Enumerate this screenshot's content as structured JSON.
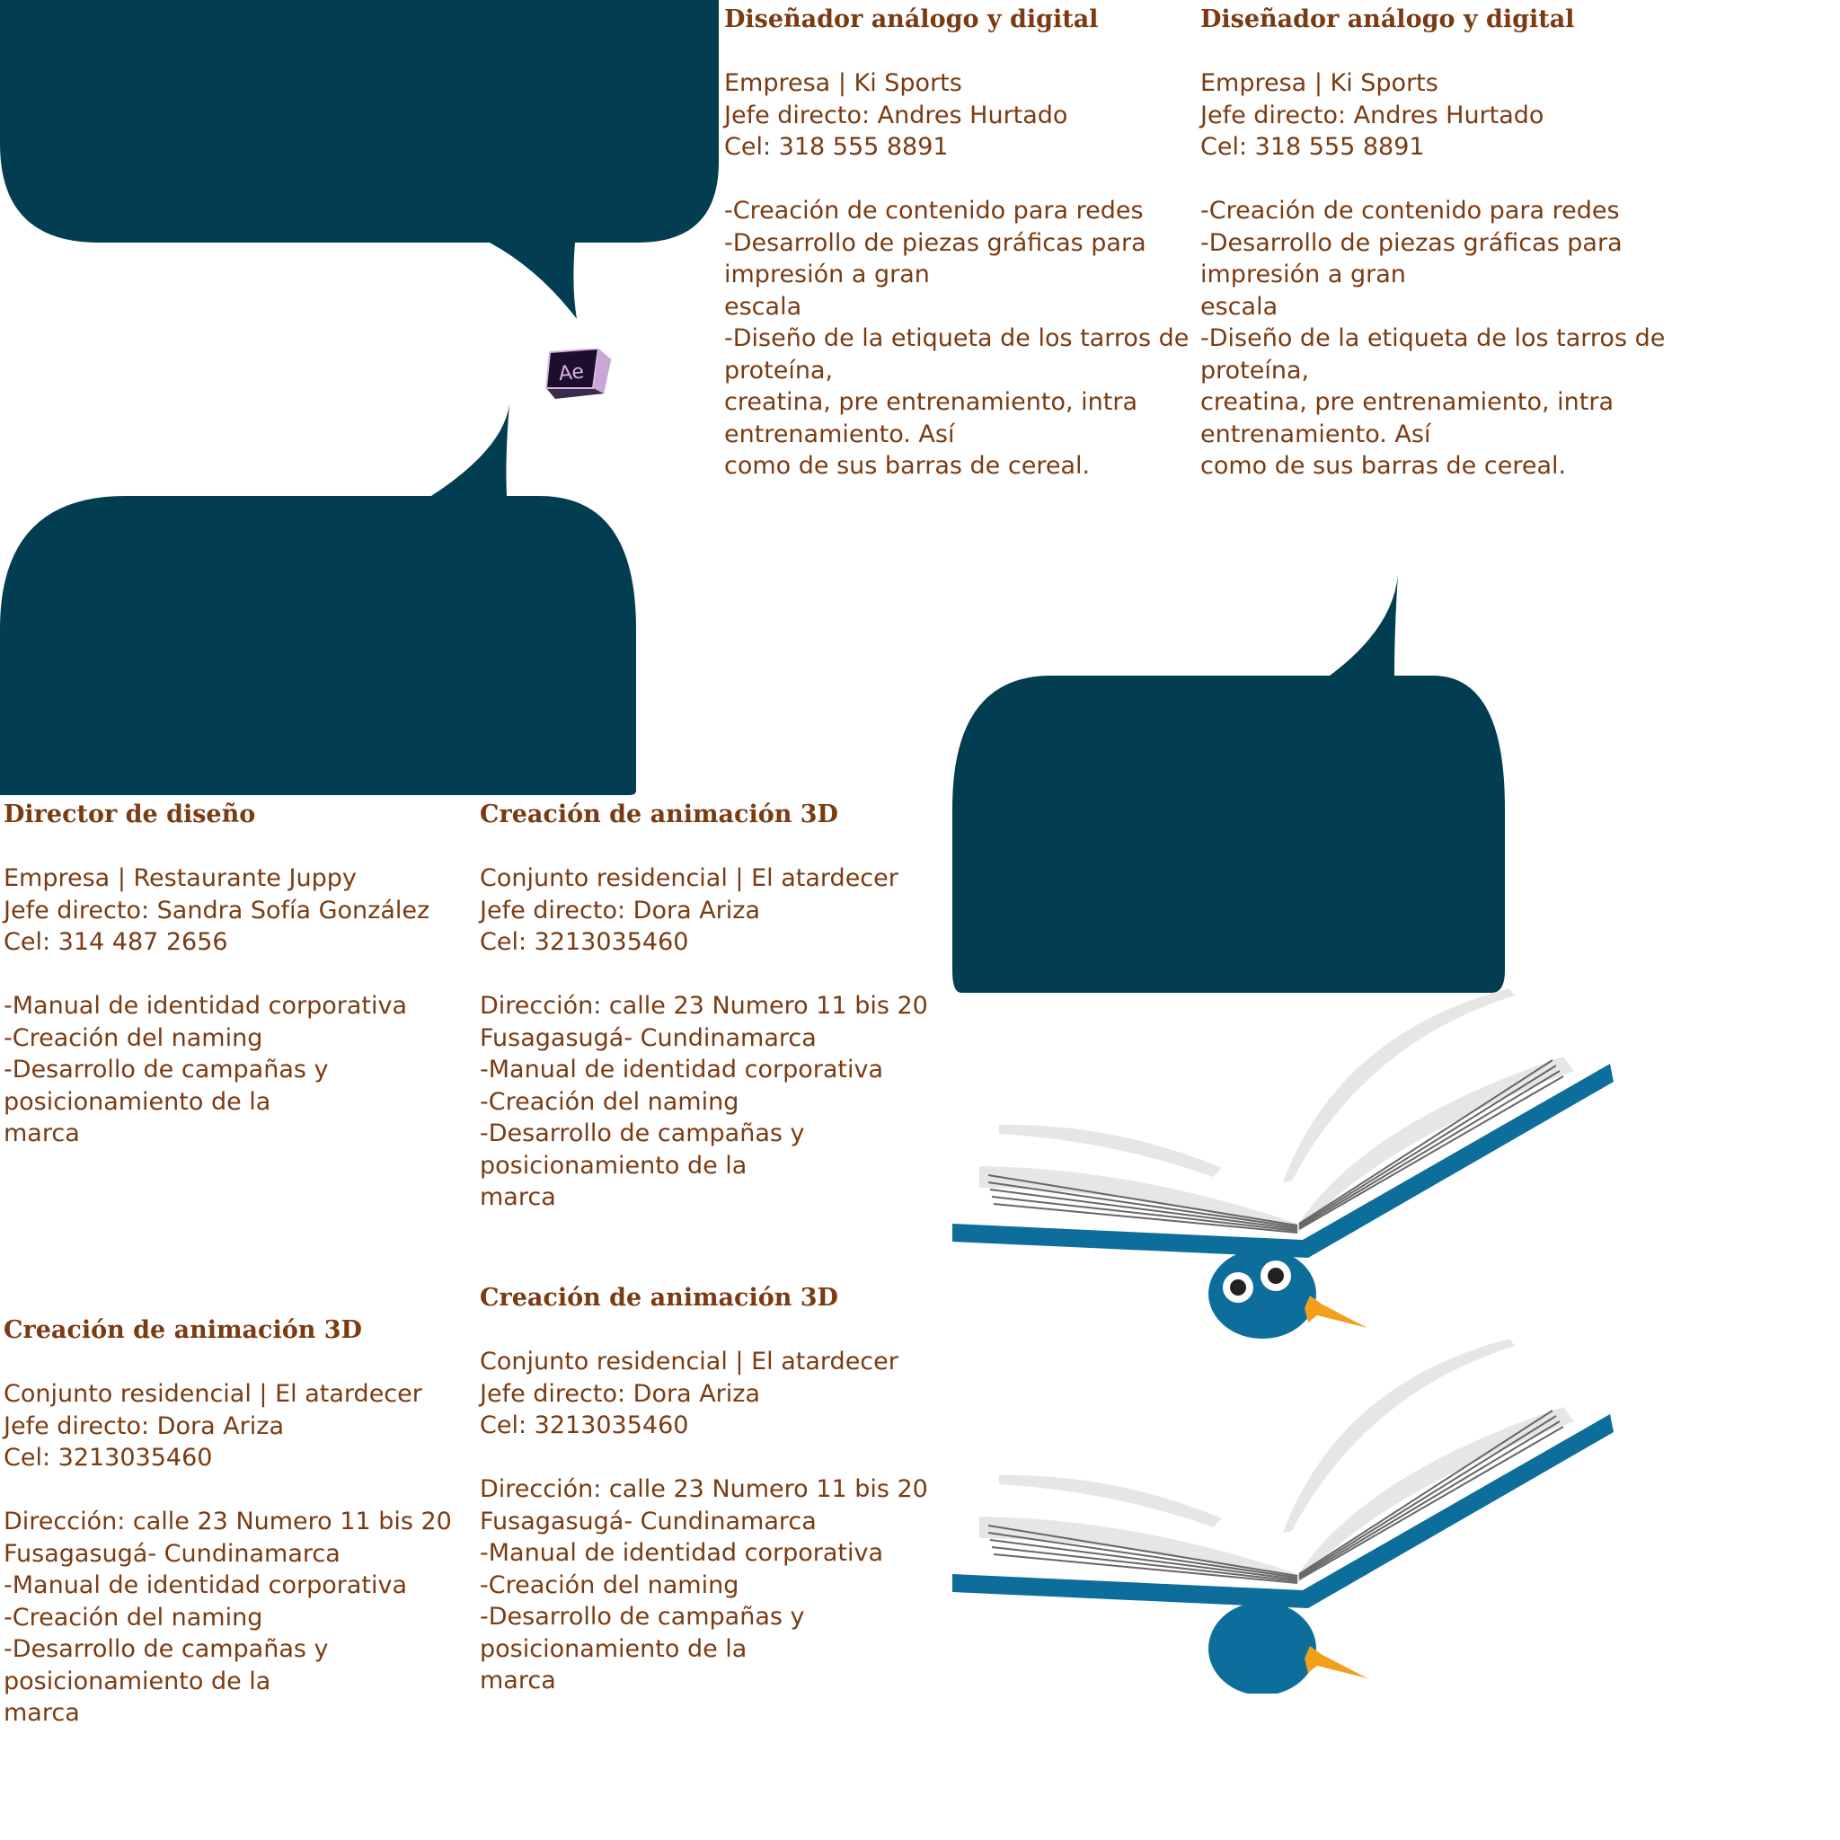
{
  "colors": {
    "bubble": "#023d51",
    "text": "#7a3b12",
    "book_blue": "#0d6e9c",
    "beak": "#f2a01c",
    "page_gray": "#e6e6e6"
  },
  "ae_icon": {
    "label": "Ae"
  },
  "blocks": [
    {
      "title": "Diseñador análogo y digital",
      "company": "Empresa | Ki Sports",
      "boss": "Jefe directo: Andres Hurtado",
      "phone": "Cel: 318 555 8891",
      "lines": [
        "-Creación de contenido para redes",
        "-Desarrollo de piezas gráficas para",
        "impresión a gran",
        "escala",
        "-Diseño de la etiqueta de los tarros de",
        "proteína,",
        "creatina, pre entrenamiento, intra",
        "entrenamiento. Así",
        "como de sus barras de cereal."
      ]
    },
    {
      "title": "Diseñador análogo y digital",
      "company": "Empresa | Ki Sports",
      "boss": "Jefe directo: Andres Hurtado",
      "phone": "Cel: 318 555 8891",
      "lines": [
        "-Creación de contenido para redes",
        "-Desarrollo de piezas gráficas para",
        "impresión a gran",
        "escala",
        "-Diseño de la etiqueta de los tarros de",
        "proteína,",
        "creatina, pre entrenamiento, intra",
        "entrenamiento. Así",
        "como de sus barras de cereal."
      ]
    },
    {
      "title": "Director de diseño",
      "company": "Empresa | Restaurante Juppy",
      "boss": "Jefe directo: Sandra Sofía González",
      "phone": "Cel: 314 487 2656",
      "lines": [
        "-Manual de identidad corporativa",
        "-Creación del naming",
        "-Desarrollo de campañas y",
        "posicionamiento de la",
        "marca"
      ]
    },
    {
      "title": "Creación de animación 3D",
      "company": "Conjunto residencial | El atardecer",
      "boss": "Jefe directo: Dora Ariza",
      "phone": "Cel: 3213035460",
      "lines": [
        "Dirección: calle 23 Numero 11 bis 20",
        "Fusagasugá- Cundinamarca",
        "-Manual de identidad corporativa",
        "-Creación del naming",
        "-Desarrollo de campañas y",
        "posicionamiento de la",
        "marca"
      ]
    },
    {
      "title": "Creación de animación 3D",
      "company": "Conjunto residencial | El atardecer",
      "boss": "Jefe directo: Dora Ariza",
      "phone": "Cel: 3213035460",
      "lines": [
        "Dirección: calle 23 Numero 11 bis 20",
        "Fusagasugá- Cundinamarca",
        "-Manual de identidad corporativa",
        "-Creación del naming",
        "-Desarrollo de campañas y",
        "posicionamiento de la",
        "marca"
      ]
    },
    {
      "title": "Creación de animación 3D",
      "company": "Conjunto residencial | El atardecer",
      "boss": "Jefe directo: Dora Ariza",
      "phone": "Cel: 3213035460",
      "lines": [
        "Dirección: calle 23 Numero 11 bis 20",
        "Fusagasugá- Cundinamarca",
        "-Manual de identidad corporativa",
        "-Creación del naming",
        "-Desarrollo de campañas y",
        "posicionamiento de la",
        "marca"
      ]
    }
  ]
}
